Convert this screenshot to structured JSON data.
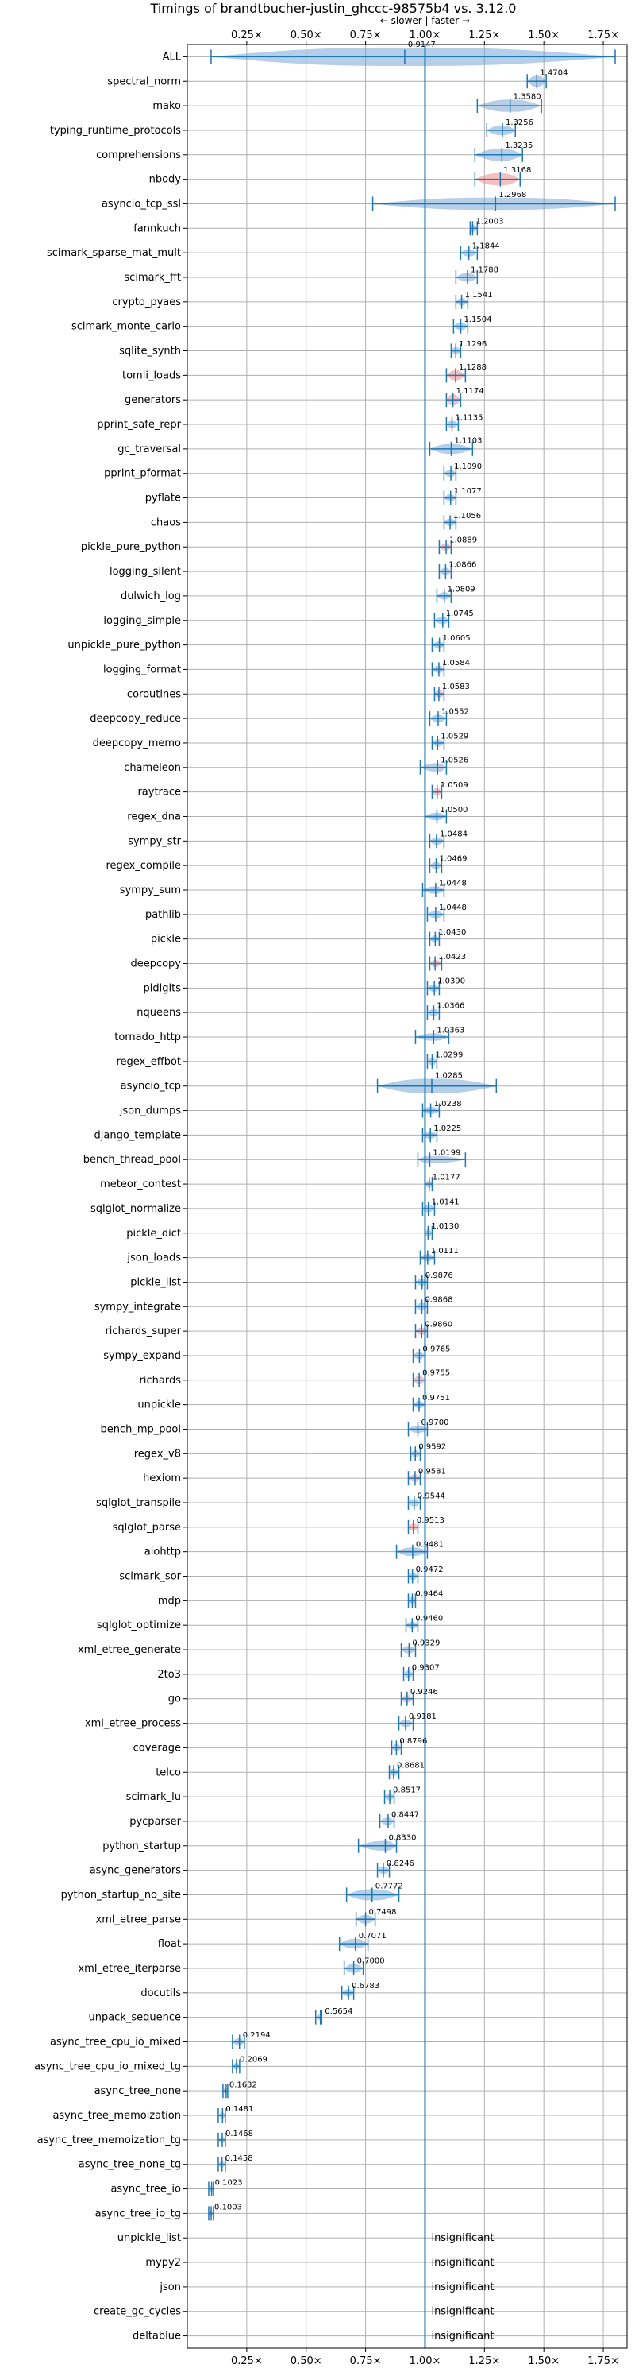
{
  "chart_data": {
    "type": "violin",
    "title": "Timings of brandtbucher-justin_ghccc-98575b4 vs. 3.12.0",
    "annotation": "← slower | faster →",
    "xlim": [
      0.0,
      1.85
    ],
    "xticks": [
      0.25,
      0.5,
      0.75,
      1.0,
      1.25,
      1.5,
      1.75
    ],
    "xtick_labels": [
      "0.25×",
      "0.50×",
      "0.75×",
      "1.00×",
      "1.25×",
      "1.50×",
      "1.75×"
    ],
    "grid": true,
    "baseline": 1.0,
    "colors": {
      "violin": "#6b9fd3",
      "violin_sig": "#f08080",
      "line": "#1f77b4",
      "grid": "#b0b0b0"
    },
    "benchmarks": [
      {
        "name": "ALL",
        "value": 0.9147,
        "label": "0.9147",
        "lo": 0.1,
        "hi": 1.8,
        "w": 0.75,
        "hot": false
      },
      {
        "name": "spectral_norm",
        "value": 1.4704,
        "label": "1.4704",
        "lo": 1.43,
        "hi": 1.51,
        "w": 0.45,
        "hot": false
      },
      {
        "name": "mako",
        "value": 1.358,
        "label": "1.3580",
        "lo": 1.22,
        "hi": 1.49,
        "w": 0.5,
        "hot": false
      },
      {
        "name": "typing_runtime_protocols",
        "value": 1.3256,
        "label": "1.3256",
        "lo": 1.26,
        "hi": 1.38,
        "w": 0.4,
        "hot": false
      },
      {
        "name": "comprehensions",
        "value": 1.3235,
        "label": "1.3235",
        "lo": 1.21,
        "hi": 1.41,
        "w": 0.5,
        "hot": false
      },
      {
        "name": "nbody",
        "value": 1.3168,
        "label": "1.3168",
        "lo": 1.21,
        "hi": 1.4,
        "w": 0.5,
        "hot": true
      },
      {
        "name": "asyncio_tcp_ssl",
        "value": 1.2968,
        "label": "1.2968",
        "lo": 0.78,
        "hi": 1.8,
        "w": 0.5,
        "hot": false
      },
      {
        "name": "fannkuch",
        "value": 1.2003,
        "label": "1.2003",
        "lo": 1.19,
        "hi": 1.22,
        "w": 0.3,
        "hot": false
      },
      {
        "name": "scimark_sparse_mat_mult",
        "value": 1.1844,
        "label": "1.1844",
        "lo": 1.15,
        "hi": 1.22,
        "w": 0.3,
        "hot": false
      },
      {
        "name": "scimark_fft",
        "value": 1.1788,
        "label": "1.1788",
        "lo": 1.13,
        "hi": 1.22,
        "w": 0.35,
        "hot": false
      },
      {
        "name": "crypto_pyaes",
        "value": 1.1541,
        "label": "1.1541",
        "lo": 1.13,
        "hi": 1.18,
        "w": 0.3,
        "hot": false
      },
      {
        "name": "scimark_monte_carlo",
        "value": 1.1504,
        "label": "1.1504",
        "lo": 1.12,
        "hi": 1.18,
        "w": 0.3,
        "hot": false
      },
      {
        "name": "sqlite_synth",
        "value": 1.1296,
        "label": "1.1296",
        "lo": 1.11,
        "hi": 1.15,
        "w": 0.3,
        "hot": false
      },
      {
        "name": "tomli_loads",
        "value": 1.1288,
        "label": "1.1288",
        "lo": 1.09,
        "hi": 1.17,
        "w": 0.4,
        "hot": true
      },
      {
        "name": "generators",
        "value": 1.1174,
        "label": "1.1174",
        "lo": 1.09,
        "hi": 1.15,
        "w": 0.45,
        "hot": true
      },
      {
        "name": "pprint_safe_repr",
        "value": 1.1135,
        "label": "1.1135",
        "lo": 1.09,
        "hi": 1.14,
        "w": 0.3,
        "hot": false
      },
      {
        "name": "gc_traversal",
        "value": 1.1103,
        "label": "1.1103",
        "lo": 1.02,
        "hi": 1.2,
        "w": 0.4,
        "hot": false
      },
      {
        "name": "pprint_pformat",
        "value": 1.109,
        "label": "1.1090",
        "lo": 1.08,
        "hi": 1.13,
        "w": 0.3,
        "hot": false
      },
      {
        "name": "pyflate",
        "value": 1.1077,
        "label": "1.1077",
        "lo": 1.08,
        "hi": 1.13,
        "w": 0.3,
        "hot": false
      },
      {
        "name": "chaos",
        "value": 1.1056,
        "label": "1.1056",
        "lo": 1.08,
        "hi": 1.13,
        "w": 0.3,
        "hot": false
      },
      {
        "name": "pickle_pure_python",
        "value": 1.0889,
        "label": "1.0889",
        "lo": 1.06,
        "hi": 1.11,
        "w": 0.3,
        "hot": true
      },
      {
        "name": "logging_silent",
        "value": 1.0866,
        "label": "1.0866",
        "lo": 1.06,
        "hi": 1.11,
        "w": 0.3,
        "hot": false
      },
      {
        "name": "dulwich_log",
        "value": 1.0809,
        "label": "1.0809",
        "lo": 1.05,
        "hi": 1.11,
        "w": 0.3,
        "hot": false
      },
      {
        "name": "logging_simple",
        "value": 1.0745,
        "label": "1.0745",
        "lo": 1.04,
        "hi": 1.1,
        "w": 0.3,
        "hot": false
      },
      {
        "name": "unpickle_pure_python",
        "value": 1.0605,
        "label": "1.0605",
        "lo": 1.03,
        "hi": 1.08,
        "w": 0.3,
        "hot": false
      },
      {
        "name": "logging_format",
        "value": 1.0584,
        "label": "1.0584",
        "lo": 1.03,
        "hi": 1.08,
        "w": 0.3,
        "hot": false
      },
      {
        "name": "coroutines",
        "value": 1.0583,
        "label": "1.0583",
        "lo": 1.04,
        "hi": 1.08,
        "w": 0.35,
        "hot": true
      },
      {
        "name": "deepcopy_reduce",
        "value": 1.0552,
        "label": "1.0552",
        "lo": 1.02,
        "hi": 1.09,
        "w": 0.3,
        "hot": false
      },
      {
        "name": "deepcopy_memo",
        "value": 1.0529,
        "label": "1.0529",
        "lo": 1.03,
        "hi": 1.08,
        "w": 0.3,
        "hot": false
      },
      {
        "name": "chameleon",
        "value": 1.0526,
        "label": "1.0526",
        "lo": 0.98,
        "hi": 1.09,
        "w": 0.35,
        "hot": false
      },
      {
        "name": "raytrace",
        "value": 1.0509,
        "label": "1.0509",
        "lo": 1.03,
        "hi": 1.07,
        "w": 0.3,
        "hot": true
      },
      {
        "name": "regex_dna",
        "value": 1.05,
        "label": "1.0500",
        "lo": 1.0,
        "hi": 1.09,
        "w": 0.3,
        "hot": false
      },
      {
        "name": "sympy_str",
        "value": 1.0484,
        "label": "1.0484",
        "lo": 1.02,
        "hi": 1.08,
        "w": 0.3,
        "hot": false
      },
      {
        "name": "regex_compile",
        "value": 1.0469,
        "label": "1.0469",
        "lo": 1.02,
        "hi": 1.07,
        "w": 0.3,
        "hot": false
      },
      {
        "name": "sympy_sum",
        "value": 1.0448,
        "label": "1.0448",
        "lo": 0.99,
        "hi": 1.08,
        "w": 0.3,
        "hot": false
      },
      {
        "name": "pathlib",
        "value": 1.0448,
        "label": "1.0448",
        "lo": 1.01,
        "hi": 1.08,
        "w": 0.3,
        "hot": false
      },
      {
        "name": "pickle",
        "value": 1.043,
        "label": "1.0430",
        "lo": 1.02,
        "hi": 1.06,
        "w": 0.3,
        "hot": false
      },
      {
        "name": "deepcopy",
        "value": 1.0423,
        "label": "1.0423",
        "lo": 1.02,
        "hi": 1.07,
        "w": 0.3,
        "hot": true
      },
      {
        "name": "pidigits",
        "value": 1.039,
        "label": "1.0390",
        "lo": 1.01,
        "hi": 1.06,
        "w": 0.3,
        "hot": false
      },
      {
        "name": "nqueens",
        "value": 1.0366,
        "label": "1.0366",
        "lo": 1.01,
        "hi": 1.06,
        "w": 0.3,
        "hot": false
      },
      {
        "name": "tornado_http",
        "value": 1.0363,
        "label": "1.0363",
        "lo": 0.96,
        "hi": 1.1,
        "w": 0.3,
        "hot": false
      },
      {
        "name": "regex_effbot",
        "value": 1.0299,
        "label": "1.0299",
        "lo": 1.01,
        "hi": 1.05,
        "w": 0.3,
        "hot": false
      },
      {
        "name": "asyncio_tcp",
        "value": 1.0285,
        "label": "1.0285",
        "lo": 0.8,
        "hi": 1.3,
        "w": 0.6,
        "hot": false
      },
      {
        "name": "json_dumps",
        "value": 1.0238,
        "label": "1.0238",
        "lo": 0.99,
        "hi": 1.06,
        "w": 0.3,
        "hot": false
      },
      {
        "name": "django_template",
        "value": 1.0225,
        "label": "1.0225",
        "lo": 0.99,
        "hi": 1.05,
        "w": 0.3,
        "hot": false
      },
      {
        "name": "bench_thread_pool",
        "value": 1.0199,
        "label": "1.0199",
        "lo": 0.97,
        "hi": 1.17,
        "w": 0.3,
        "hot": false
      },
      {
        "name": "meteor_contest",
        "value": 1.0177,
        "label": "1.0177",
        "lo": 1.0,
        "hi": 1.03,
        "w": 0.3,
        "hot": false
      },
      {
        "name": "sqlglot_normalize",
        "value": 1.0141,
        "label": "1.0141",
        "lo": 0.99,
        "hi": 1.04,
        "w": 0.3,
        "hot": false
      },
      {
        "name": "pickle_dict",
        "value": 1.013,
        "label": "1.0130",
        "lo": 1.0,
        "hi": 1.03,
        "w": 0.3,
        "hot": false
      },
      {
        "name": "json_loads",
        "value": 1.0111,
        "label": "1.0111",
        "lo": 0.98,
        "hi": 1.04,
        "w": 0.3,
        "hot": false
      },
      {
        "name": "pickle_list",
        "value": 0.9876,
        "label": "0.9876",
        "lo": 0.96,
        "hi": 1.01,
        "w": 0.3,
        "hot": false
      },
      {
        "name": "sympy_integrate",
        "value": 0.9868,
        "label": "0.9868",
        "lo": 0.96,
        "hi": 1.01,
        "w": 0.3,
        "hot": false
      },
      {
        "name": "richards_super",
        "value": 0.986,
        "label": "0.9860",
        "lo": 0.96,
        "hi": 1.01,
        "w": 0.3,
        "hot": true
      },
      {
        "name": "sympy_expand",
        "value": 0.9765,
        "label": "0.9765",
        "lo": 0.95,
        "hi": 1.0,
        "w": 0.3,
        "hot": false
      },
      {
        "name": "richards",
        "value": 0.9755,
        "label": "0.9755",
        "lo": 0.95,
        "hi": 1.0,
        "w": 0.35,
        "hot": true
      },
      {
        "name": "unpickle",
        "value": 0.9751,
        "label": "0.9751",
        "lo": 0.95,
        "hi": 1.0,
        "w": 0.3,
        "hot": false
      },
      {
        "name": "bench_mp_pool",
        "value": 0.97,
        "label": "0.9700",
        "lo": 0.93,
        "hi": 1.01,
        "w": 0.3,
        "hot": false
      },
      {
        "name": "regex_v8",
        "value": 0.9592,
        "label": "0.9592",
        "lo": 0.94,
        "hi": 0.98,
        "w": 0.3,
        "hot": false
      },
      {
        "name": "hexiom",
        "value": 0.9581,
        "label": "0.9581",
        "lo": 0.93,
        "hi": 0.98,
        "w": 0.3,
        "hot": true
      },
      {
        "name": "sqlglot_transpile",
        "value": 0.9544,
        "label": "0.9544",
        "lo": 0.93,
        "hi": 0.98,
        "w": 0.3,
        "hot": false
      },
      {
        "name": "sqlglot_parse",
        "value": 0.9513,
        "label": "0.9513",
        "lo": 0.93,
        "hi": 0.97,
        "w": 0.3,
        "hot": true
      },
      {
        "name": "aiohttp",
        "value": 0.9481,
        "label": "0.9481",
        "lo": 0.88,
        "hi": 1.01,
        "w": 0.35,
        "hot": false
      },
      {
        "name": "scimark_sor",
        "value": 0.9472,
        "label": "0.9472",
        "lo": 0.93,
        "hi": 0.97,
        "w": 0.3,
        "hot": false
      },
      {
        "name": "mdp",
        "value": 0.9464,
        "label": "0.9464",
        "lo": 0.93,
        "hi": 0.96,
        "w": 0.3,
        "hot": false
      },
      {
        "name": "sqlglot_optimize",
        "value": 0.946,
        "label": "0.9460",
        "lo": 0.92,
        "hi": 0.97,
        "w": 0.3,
        "hot": false
      },
      {
        "name": "xml_etree_generate",
        "value": 0.9329,
        "label": "0.9329",
        "lo": 0.9,
        "hi": 0.96,
        "w": 0.3,
        "hot": false
      },
      {
        "name": "2to3",
        "value": 0.9307,
        "label": "0.9307",
        "lo": 0.91,
        "hi": 0.95,
        "w": 0.3,
        "hot": false
      },
      {
        "name": "go",
        "value": 0.9246,
        "label": "0.9246",
        "lo": 0.9,
        "hi": 0.95,
        "w": 0.3,
        "hot": true
      },
      {
        "name": "xml_etree_process",
        "value": 0.9181,
        "label": "0.9181",
        "lo": 0.89,
        "hi": 0.95,
        "w": 0.3,
        "hot": false
      },
      {
        "name": "coverage",
        "value": 0.8796,
        "label": "0.8796",
        "lo": 0.86,
        "hi": 0.9,
        "w": 0.3,
        "hot": false
      },
      {
        "name": "telco",
        "value": 0.8681,
        "label": "0.8681",
        "lo": 0.85,
        "hi": 0.89,
        "w": 0.3,
        "hot": false
      },
      {
        "name": "scimark_lu",
        "value": 0.8517,
        "label": "0.8517",
        "lo": 0.83,
        "hi": 0.87,
        "w": 0.3,
        "hot": false
      },
      {
        "name": "pycparser",
        "value": 0.8447,
        "label": "0.8447",
        "lo": 0.81,
        "hi": 0.87,
        "w": 0.3,
        "hot": false
      },
      {
        "name": "python_startup",
        "value": 0.833,
        "label": "0.8330",
        "lo": 0.72,
        "hi": 0.88,
        "w": 0.4,
        "hot": false
      },
      {
        "name": "async_generators",
        "value": 0.8246,
        "label": "0.8246",
        "lo": 0.8,
        "hi": 0.85,
        "w": 0.3,
        "hot": false
      },
      {
        "name": "python_startup_no_site",
        "value": 0.7772,
        "label": "0.7772",
        "lo": 0.67,
        "hi": 0.89,
        "w": 0.45,
        "hot": false
      },
      {
        "name": "xml_etree_parse",
        "value": 0.7498,
        "label": "0.7498",
        "lo": 0.71,
        "hi": 0.79,
        "w": 0.35,
        "hot": false
      },
      {
        "name": "float",
        "value": 0.7071,
        "label": "0.7071",
        "lo": 0.64,
        "hi": 0.76,
        "w": 0.4,
        "hot": false
      },
      {
        "name": "xml_etree_iterparse",
        "value": 0.7,
        "label": "0.7000",
        "lo": 0.66,
        "hi": 0.74,
        "w": 0.35,
        "hot": false
      },
      {
        "name": "docutils",
        "value": 0.6783,
        "label": "0.6783",
        "lo": 0.65,
        "hi": 0.7,
        "w": 0.3,
        "hot": false
      },
      {
        "name": "unpack_sequence",
        "value": 0.5654,
        "label": "0.5654",
        "lo": 0.54,
        "hi": 0.56,
        "w": 0.25,
        "hot": false
      },
      {
        "name": "async_tree_cpu_io_mixed",
        "value": 0.2194,
        "label": "0.2194",
        "lo": 0.19,
        "hi": 0.24,
        "w": 0.3,
        "hot": false
      },
      {
        "name": "async_tree_cpu_io_mixed_tg",
        "value": 0.2069,
        "label": "0.2069",
        "lo": 0.19,
        "hi": 0.22,
        "w": 0.3,
        "hot": false
      },
      {
        "name": "async_tree_none",
        "value": 0.1632,
        "label": "0.1632",
        "lo": 0.15,
        "hi": 0.17,
        "w": 0.25,
        "hot": false
      },
      {
        "name": "async_tree_memoization",
        "value": 0.1481,
        "label": "0.1481",
        "lo": 0.13,
        "hi": 0.16,
        "w": 0.25,
        "hot": false
      },
      {
        "name": "async_tree_memoization_tg",
        "value": 0.1468,
        "label": "0.1468",
        "lo": 0.13,
        "hi": 0.16,
        "w": 0.25,
        "hot": false
      },
      {
        "name": "async_tree_none_tg",
        "value": 0.1458,
        "label": "0.1458",
        "lo": 0.13,
        "hi": 0.16,
        "w": 0.25,
        "hot": false
      },
      {
        "name": "async_tree_io",
        "value": 0.1023,
        "label": "0.1023",
        "lo": 0.09,
        "hi": 0.11,
        "w": 0.25,
        "hot": false
      },
      {
        "name": "async_tree_io_tg",
        "value": 0.1003,
        "label": "0.1003",
        "lo": 0.09,
        "hi": 0.11,
        "w": 0.25,
        "hot": false
      },
      {
        "name": "unpickle_list",
        "value": null,
        "label": "insignificant"
      },
      {
        "name": "mypy2",
        "value": null,
        "label": "insignificant"
      },
      {
        "name": "json",
        "value": null,
        "label": "insignificant"
      },
      {
        "name": "create_gc_cycles",
        "value": null,
        "label": "insignificant"
      },
      {
        "name": "deltablue",
        "value": null,
        "label": "insignificant"
      }
    ]
  }
}
